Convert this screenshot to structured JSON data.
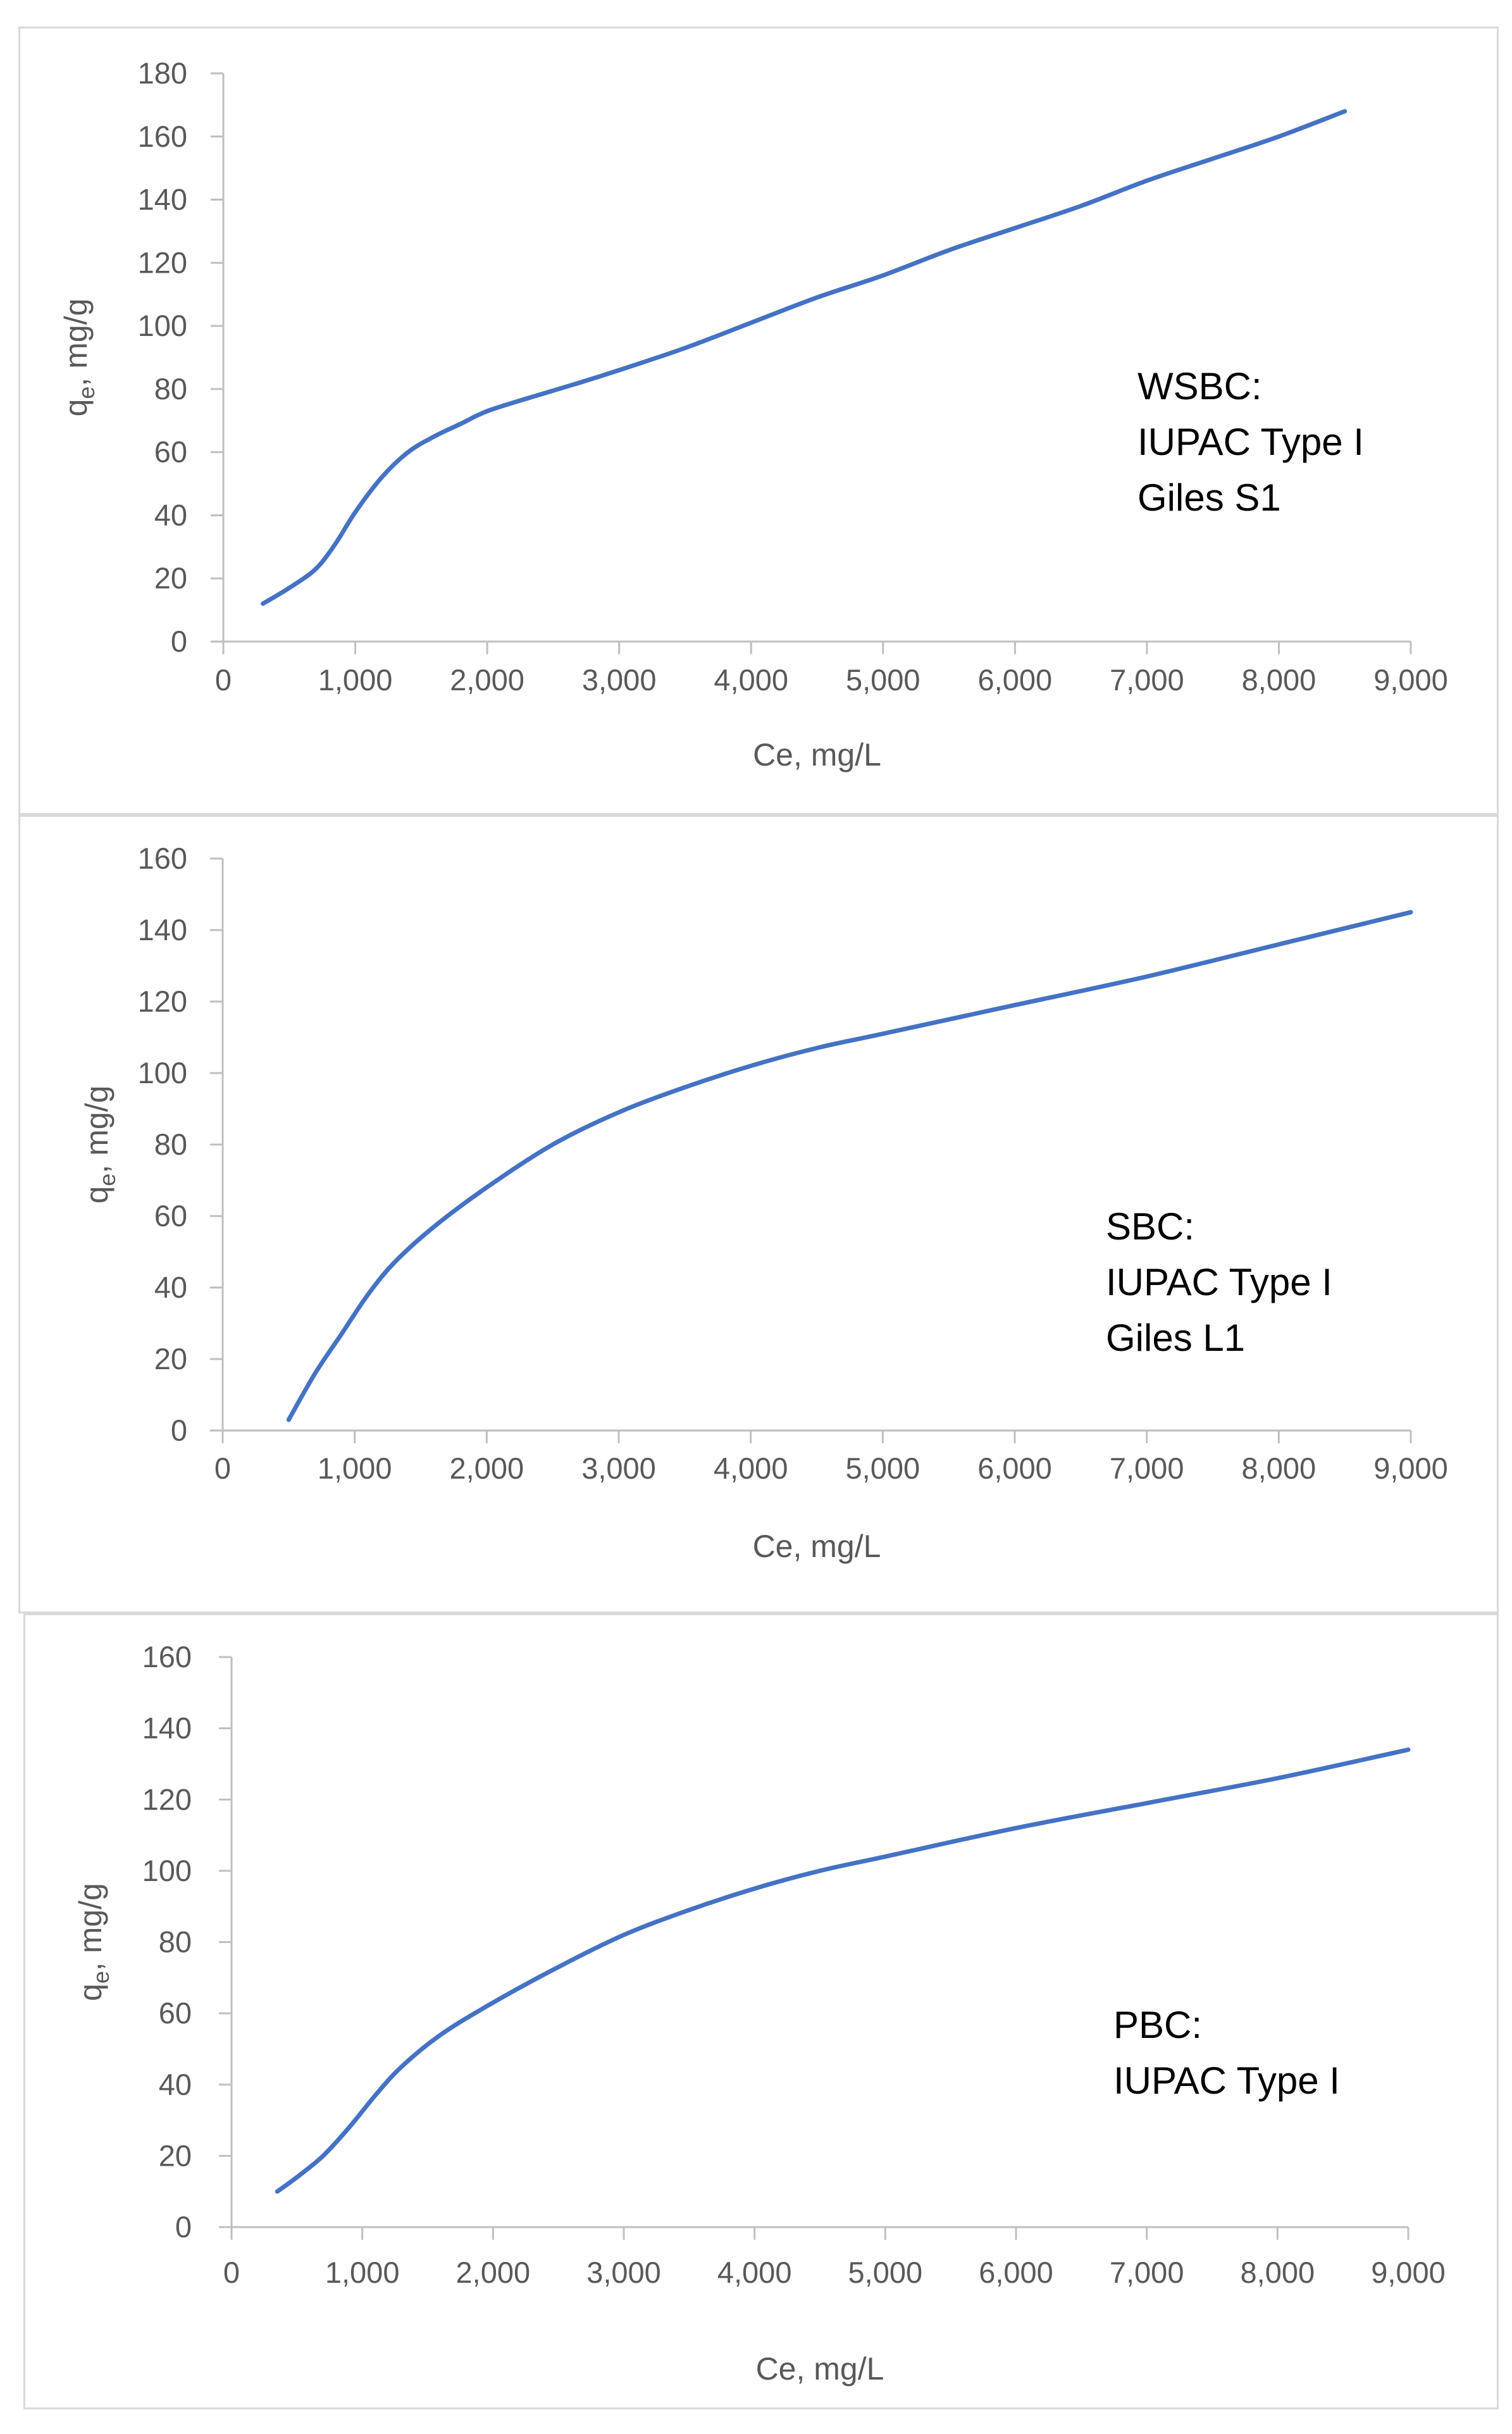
{
  "chart_data": [
    {
      "type": "line",
      "xlabel": "Ce,  mg/L",
      "ylabel": "qe,  mg/g",
      "ylabel_parts": {
        "main": "q",
        "sub": "e",
        "rest": ",  mg/g"
      },
      "xlim": [
        0,
        9000
      ],
      "ylim": [
        0,
        180
      ],
      "xticks": [
        0,
        1000,
        2000,
        3000,
        4000,
        5000,
        6000,
        7000,
        8000,
        9000
      ],
      "xtick_labels": [
        "0",
        "1,000",
        "2,000",
        "3,000",
        "4,000",
        "5,000",
        "6,000",
        "7,000",
        "8,000",
        "9,000"
      ],
      "yticks": [
        0,
        20,
        40,
        60,
        80,
        100,
        120,
        140,
        160,
        180
      ],
      "ytick_labels": [
        "0",
        "20",
        "40",
        "60",
        "80",
        "100",
        "120",
        "140",
        "160",
        "180"
      ],
      "annotation": [
        "WSBC:",
        "IUPAC Type I",
        "Giles S1"
      ],
      "series": [
        {
          "color": "#4472c4",
          "x": [
            300,
            500,
            700,
            850,
            1000,
            1200,
            1400,
            1600,
            1800,
            2000,
            2300,
            2700,
            3000,
            3500,
            4000,
            4500,
            5000,
            5500,
            6000,
            6500,
            7000,
            7500,
            8000,
            8500
          ],
          "y": [
            12,
            17,
            23,
            31,
            41,
            52,
            60,
            65,
            69,
            73,
            77,
            82,
            86,
            93,
            101,
            109,
            116,
            124,
            131,
            138,
            146,
            153,
            160,
            168
          ]
        }
      ]
    },
    {
      "type": "line",
      "xlabel": "Ce,  mg/L",
      "ylabel": "qe,  mg/g",
      "ylabel_parts": {
        "main": "q",
        "sub": "e",
        "rest": ",  mg/g"
      },
      "xlim": [
        0,
        9000
      ],
      "ylim": [
        0,
        160
      ],
      "xticks": [
        0,
        1000,
        2000,
        3000,
        4000,
        5000,
        6000,
        7000,
        8000,
        9000
      ],
      "xtick_labels": [
        "0",
        "1,000",
        "2,000",
        "3,000",
        "4,000",
        "5,000",
        "6,000",
        "7,000",
        "8,000",
        "9,000"
      ],
      "yticks": [
        0,
        20,
        40,
        60,
        80,
        100,
        120,
        140,
        160
      ],
      "ytick_labels": [
        "0",
        "20",
        "40",
        "60",
        "80",
        "100",
        "120",
        "140",
        "160"
      ],
      "annotation": [
        "SBC:",
        "IUPAC Type I",
        "Giles L1"
      ],
      "series": [
        {
          "color": "#4472c4",
          "x": [
            500,
            700,
            900,
            1100,
            1300,
            1600,
            2000,
            2500,
            3000,
            3500,
            4000,
            4500,
            5000,
            6000,
            7000,
            8000,
            9000
          ],
          "y": [
            3,
            16,
            27,
            38,
            47,
            57,
            68,
            80,
            89,
            96,
            102,
            107,
            111,
            119,
            127,
            136,
            145
          ]
        }
      ]
    },
    {
      "type": "line",
      "xlabel": "Ce,  mg/L",
      "ylabel": "qe,  mg/g",
      "ylabel_parts": {
        "main": "q",
        "sub": "e",
        "rest": ",  mg/g"
      },
      "xlim": [
        0,
        9000
      ],
      "ylim": [
        0,
        160
      ],
      "xticks": [
        0,
        1000,
        2000,
        3000,
        4000,
        5000,
        6000,
        7000,
        8000,
        9000
      ],
      "xtick_labels": [
        "0",
        "1,000",
        "2,000",
        "3,000",
        "4,000",
        "5,000",
        "6,000",
        "7,000",
        "8,000",
        "9,000"
      ],
      "yticks": [
        0,
        20,
        40,
        60,
        80,
        100,
        120,
        140,
        160
      ],
      "ytick_labels": [
        "0",
        "20",
        "40",
        "60",
        "80",
        "100",
        "120",
        "140",
        "160"
      ],
      "annotation": [
        "PBC:",
        "IUPAC Type I"
      ],
      "series": [
        {
          "color": "#4472c4",
          "x": [
            350,
            500,
            700,
            900,
            1100,
            1300,
            1600,
            2000,
            2500,
            3000,
            3500,
            4000,
            4500,
            5000,
            6000,
            7000,
            8000,
            9000
          ],
          "y": [
            10,
            14,
            20,
            28,
            37,
            45,
            54,
            63,
            73,
            82,
            89,
            95,
            100,
            104,
            112,
            119,
            126,
            134
          ]
        }
      ]
    }
  ]
}
